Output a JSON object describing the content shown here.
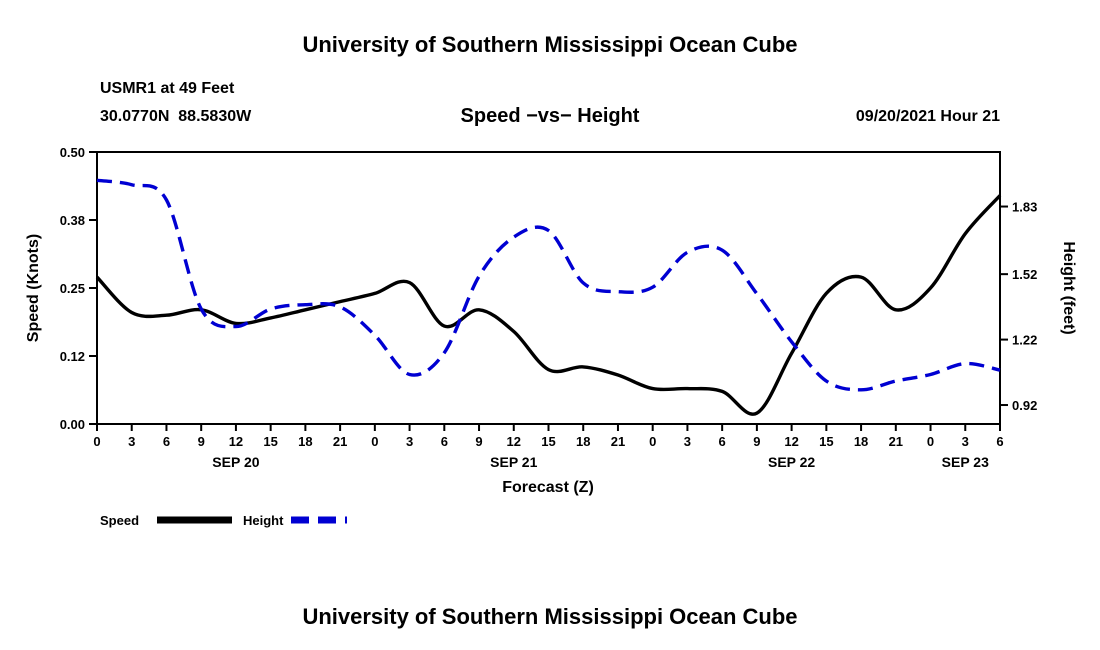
{
  "header": {
    "top_title": "University of Southern Mississippi Ocean Cube",
    "station_line1": "USMR1 at 49 Feet",
    "station_line2": "30.0770N  88.5830W",
    "chart_title": "Speed −vs− Height",
    "datetime": "09/20/2021 Hour 21"
  },
  "footer": {
    "title": "University of Southern Mississippi Ocean Cube"
  },
  "legend": [
    {
      "label": "Speed",
      "color": "#000000",
      "style": "solid"
    },
    {
      "label": "Height",
      "color": "#0000d2",
      "style": "dashed"
    }
  ],
  "chart_data": {
    "type": "line",
    "title": "Speed -vs- Height",
    "xlabel": "Forecast (Z)",
    "left_ylabel": "Speed (Knots)",
    "right_ylabel": "Height (feet)",
    "xlim": [
      0,
      78
    ],
    "left_ylim": [
      0,
      0.5
    ],
    "right_ylim": [
      0.833,
      2.08
    ],
    "grid": false,
    "x_hours": [
      0,
      3,
      6,
      9,
      12,
      15,
      18,
      21,
      24,
      27,
      30,
      33,
      36,
      39,
      42,
      45,
      48,
      51,
      54,
      57,
      60,
      63,
      66,
      69,
      72,
      75,
      78
    ],
    "x_tick_labels": [
      "0",
      "3",
      "6",
      "9",
      "12",
      "15",
      "18",
      "21",
      "0",
      "3",
      "6",
      "9",
      "12",
      "15",
      "18",
      "21",
      "0",
      "3",
      "6",
      "9",
      "12",
      "15",
      "18",
      "21",
      "0",
      "3",
      "6"
    ],
    "day_labels": [
      {
        "label": "SEP 20",
        "hour": 12
      },
      {
        "label": "SEP 21",
        "hour": 36
      },
      {
        "label": "SEP 22",
        "hour": 60
      },
      {
        "label": "SEP 23",
        "hour": 75
      }
    ],
    "left_ticks": [
      {
        "v": 0.0,
        "label": "0.00"
      },
      {
        "v": 0.125,
        "label": "0.12"
      },
      {
        "v": 0.25,
        "label": "0.25"
      },
      {
        "v": 0.375,
        "label": "0.38"
      },
      {
        "v": 0.5,
        "label": "0.50"
      }
    ],
    "right_ticks": [
      {
        "v": 0.92,
        "label": "0.92"
      },
      {
        "v": 1.22,
        "label": "1.22"
      },
      {
        "v": 1.52,
        "label": "1.52"
      },
      {
        "v": 1.83,
        "label": "1.83"
      }
    ],
    "series": [
      {
        "name": "Speed",
        "axis": "left",
        "unit": "Knots",
        "color": "#000000",
        "style": "solid",
        "values": [
          0.27,
          0.205,
          0.2,
          0.21,
          0.185,
          0.195,
          0.21,
          0.225,
          0.24,
          0.26,
          0.18,
          0.21,
          0.17,
          0.1,
          0.105,
          0.09,
          0.065,
          0.065,
          0.06,
          0.02,
          0.13,
          0.24,
          0.27,
          0.21,
          0.25,
          0.35,
          0.42
        ]
      },
      {
        "name": "Height",
        "axis": "right",
        "unit": "feet",
        "color": "#0000d2",
        "style": "dashed",
        "values": [
          1.95,
          1.93,
          1.86,
          1.36,
          1.28,
          1.36,
          1.38,
          1.37,
          1.24,
          1.06,
          1.16,
          1.51,
          1.69,
          1.72,
          1.48,
          1.44,
          1.46,
          1.62,
          1.63,
          1.43,
          1.21,
          1.03,
          0.99,
          1.03,
          1.06,
          1.11,
          1.08
        ]
      }
    ]
  }
}
